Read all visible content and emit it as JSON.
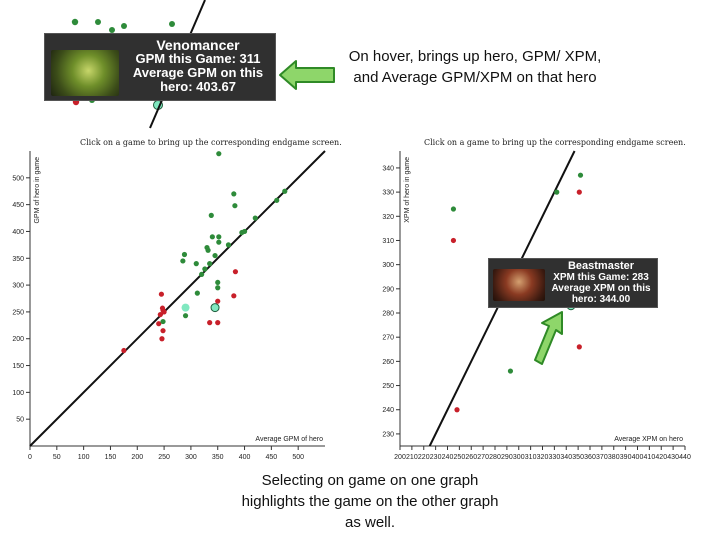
{
  "hover_caption": "On hover, brings up hero, GPM/ XPM, and Average GPM/XPM on that hero",
  "select_caption": "Selecting on game on one graph highlights the game on the other graph as well.",
  "tooltip_top": {
    "hero": "Venomancer",
    "line1": "GPM this Game: 311",
    "line2": "Average GPM on this",
    "line3": "hero: 403.67"
  },
  "tooltip_right": {
    "hero": "Beastmaster",
    "line1": "XPM this Game: 283",
    "line2": "Average XPM on this",
    "line3": "hero: 344.00"
  },
  "colors": {
    "above_line": "#2e8b3a",
    "below_line": "#c8202a",
    "highlight": "#80e8c0",
    "arrow_fill": "#8ed66a",
    "arrow_stroke": "#2f8a26",
    "tooltip_bg": "#303030"
  },
  "chart_data": [
    {
      "type": "scatter",
      "title": "Click on a game to bring up the corresponding endgame screen.",
      "xlabel": "Average GPM of hero",
      "ylabel": "GPM of hero in game",
      "xlim": [
        0,
        550
      ],
      "ylim": [
        0,
        550
      ],
      "xticks": [
        0,
        50,
        100,
        150,
        200,
        250,
        300,
        350,
        400,
        450,
        500
      ],
      "yticks": [
        50,
        100,
        150,
        200,
        250,
        300,
        350,
        400,
        450,
        500
      ],
      "reference_line": "y = x",
      "points": [
        {
          "x": 175,
          "y": 178,
          "group": "below"
        },
        {
          "x": 240,
          "y": 228,
          "group": "below"
        },
        {
          "x": 245,
          "y": 283,
          "group": "below"
        },
        {
          "x": 247,
          "y": 257,
          "group": "below"
        },
        {
          "x": 248,
          "y": 253,
          "group": "below"
        },
        {
          "x": 250,
          "y": 250,
          "group": "below"
        },
        {
          "x": 243,
          "y": 245,
          "group": "below"
        },
        {
          "x": 248,
          "y": 215,
          "group": "below"
        },
        {
          "x": 246,
          "y": 200,
          "group": "below"
        },
        {
          "x": 335,
          "y": 230,
          "group": "below"
        },
        {
          "x": 350,
          "y": 230,
          "group": "below"
        },
        {
          "x": 350,
          "y": 270,
          "group": "below"
        },
        {
          "x": 383,
          "y": 325,
          "group": "below"
        },
        {
          "x": 380,
          "y": 280,
          "group": "below"
        },
        {
          "x": 248,
          "y": 232,
          "group": "above"
        },
        {
          "x": 285,
          "y": 345,
          "group": "above"
        },
        {
          "x": 288,
          "y": 357,
          "group": "above"
        },
        {
          "x": 290,
          "y": 243,
          "group": "above"
        },
        {
          "x": 310,
          "y": 340,
          "group": "above"
        },
        {
          "x": 312,
          "y": 285,
          "group": "above"
        },
        {
          "x": 320,
          "y": 320,
          "group": "above"
        },
        {
          "x": 326,
          "y": 330,
          "group": "above"
        },
        {
          "x": 330,
          "y": 370,
          "group": "above"
        },
        {
          "x": 332,
          "y": 365,
          "group": "above"
        },
        {
          "x": 335,
          "y": 340,
          "group": "above"
        },
        {
          "x": 338,
          "y": 430,
          "group": "above"
        },
        {
          "x": 340,
          "y": 390,
          "group": "above"
        },
        {
          "x": 345,
          "y": 355,
          "group": "above"
        },
        {
          "x": 350,
          "y": 305,
          "group": "above"
        },
        {
          "x": 350,
          "y": 295,
          "group": "above"
        },
        {
          "x": 352,
          "y": 380,
          "group": "above"
        },
        {
          "x": 352,
          "y": 390,
          "group": "above"
        },
        {
          "x": 352,
          "y": 545,
          "group": "above"
        },
        {
          "x": 370,
          "y": 375,
          "group": "above"
        },
        {
          "x": 380,
          "y": 470,
          "group": "above"
        },
        {
          "x": 382,
          "y": 448,
          "group": "above"
        },
        {
          "x": 395,
          "y": 398,
          "group": "above"
        },
        {
          "x": 400,
          "y": 400,
          "group": "above"
        },
        {
          "x": 420,
          "y": 425,
          "group": "above"
        },
        {
          "x": 460,
          "y": 458,
          "group": "above"
        },
        {
          "x": 475,
          "y": 475,
          "group": "above"
        },
        {
          "x": 290,
          "y": 258,
          "group": "highlight"
        },
        {
          "x": 345,
          "y": 258,
          "group": "selected"
        }
      ]
    },
    {
      "type": "scatter",
      "title": "Click on a game to bring up the corresponding endgame screen.",
      "xlabel": "Average XPM on hero",
      "ylabel": "XPM of hero in game",
      "xlim": [
        200,
        440
      ],
      "ylim": [
        225,
        347
      ],
      "xticks": [
        200,
        210,
        220,
        230,
        240,
        250,
        260,
        270,
        280,
        290,
        300,
        310,
        320,
        330,
        340,
        350,
        360,
        370,
        380,
        390,
        400,
        410,
        420,
        430,
        440
      ],
      "yticks": [
        230,
        240,
        250,
        260,
        270,
        280,
        290,
        300,
        310,
        320,
        330,
        340
      ],
      "reference_line": "y = x",
      "points": [
        {
          "x": 245,
          "y": 323,
          "group": "above"
        },
        {
          "x": 293,
          "y": 256,
          "group": "above"
        },
        {
          "x": 332,
          "y": 330,
          "group": "above"
        },
        {
          "x": 352,
          "y": 337,
          "group": "above"
        },
        {
          "x": 245,
          "y": 310,
          "group": "below"
        },
        {
          "x": 248,
          "y": 240,
          "group": "below"
        },
        {
          "x": 351,
          "y": 330,
          "group": "below"
        },
        {
          "x": 351,
          "y": 266,
          "group": "below"
        },
        {
          "x": 344,
          "y": 283,
          "group": "selected"
        }
      ]
    }
  ]
}
